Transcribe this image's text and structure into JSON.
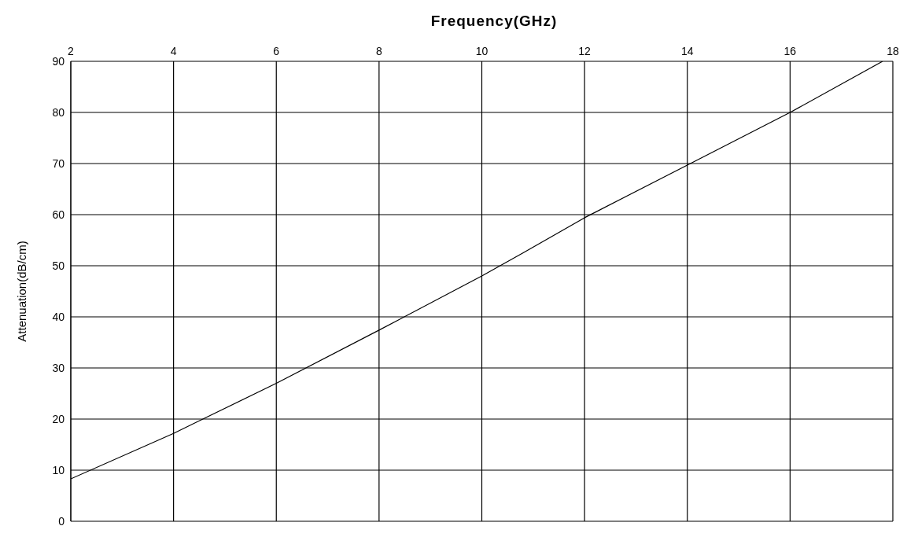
{
  "chart_data": {
    "type": "line",
    "xlabel": "Frequency(GHz)",
    "ylabel": "Attenuation(dB/cm)",
    "x": [
      2,
      4,
      6,
      8,
      10,
      10.8,
      12,
      14,
      16,
      17.8
    ],
    "series": [
      {
        "color": "#000000",
        "values": [
          8.3,
          17.2,
          27,
          37.4,
          48,
          52.5,
          59.4,
          69.7,
          80,
          90
        ]
      }
    ],
    "xlim": [
      2,
      18
    ],
    "xticks": [
      2,
      4,
      6,
      8,
      10,
      12,
      14,
      16,
      18
    ],
    "ylim": [
      0,
      90
    ],
    "yticks": [
      0,
      10,
      20,
      30,
      40,
      50,
      60,
      70,
      80,
      90
    ],
    "grid": true,
    "marker": "none",
    "line_style": "solid"
  }
}
